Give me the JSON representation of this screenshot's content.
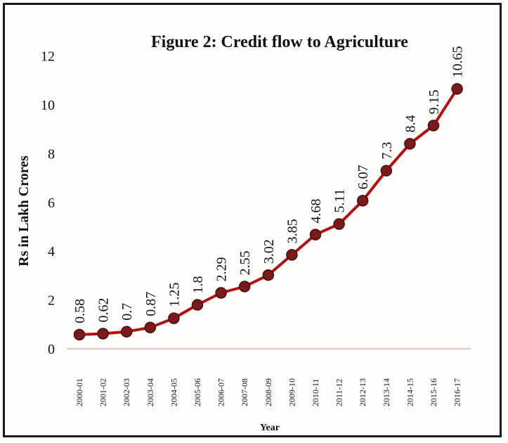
{
  "chart_data": {
    "type": "line",
    "title": "Figure 2: Credit flow to Agriculture",
    "xlabel": "Year",
    "ylabel": "Rs in Lakh Crores",
    "ylim": [
      0,
      12
    ],
    "yticks": [
      0,
      2,
      4,
      6,
      8,
      10,
      12
    ],
    "grid": false,
    "categories": [
      "2000-01",
      "2001-02",
      "2002-03",
      "2003-04",
      "2004-05",
      "2005-06",
      "2006-07",
      "2007-08",
      "2008-09",
      "2009-10",
      "2010-11",
      "2011-12",
      "2012-13",
      "2013-14",
      "2014-15",
      "2015-16",
      "2016-17"
    ],
    "series": [
      {
        "values": [
          0.58,
          0.62,
          0.7,
          0.87,
          1.25,
          1.8,
          2.29,
          2.55,
          3.02,
          3.85,
          4.68,
          5.11,
          6.07,
          7.3,
          8.4,
          9.15,
          10.65
        ],
        "data_labels": [
          "0.58",
          "0.62",
          "0.7",
          "0.87",
          "1.25",
          "1.8",
          "2.29",
          "2.55",
          "3.02",
          "3.85",
          "4.68",
          "5.11",
          "6.07",
          "7.3",
          "8.4",
          "9.15",
          "10.65"
        ],
        "color": "#b01010",
        "marker_color": "#7a1a1a"
      }
    ],
    "axis_color": "#d9a0a0"
  }
}
